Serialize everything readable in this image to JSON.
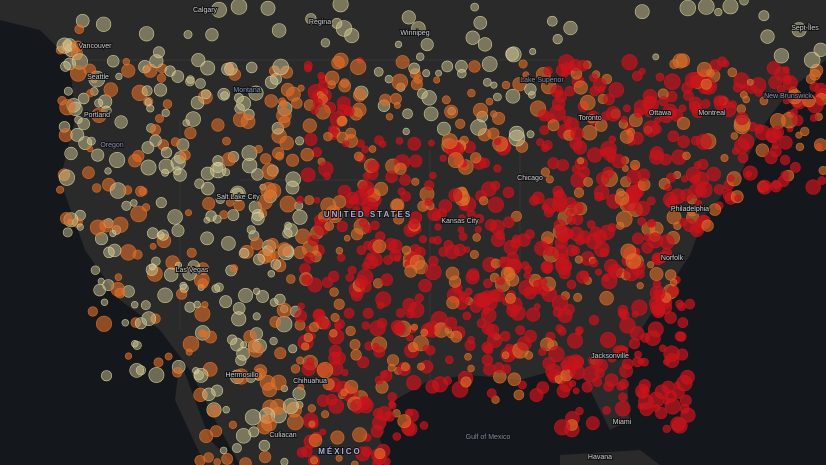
{
  "labels": [
    "Calgary",
    "Regina",
    "Winnipeg",
    "Vancouver",
    "Seattle",
    "Portland",
    "Oregon",
    "Montana",
    "Lake Superior",
    "Salt Lake City",
    "Las Vegas",
    "Kansas City",
    "UNITED STATES",
    "Chicago",
    "Toronto",
    "Ottawa",
    "Montreal",
    "Philadelphia",
    "New Brunswick",
    "Sept-Îles",
    "Norfolk",
    "Jacksonville",
    "Miami",
    "Havana",
    "Gulf of Mexico",
    "Chihuahua",
    "Hermosillo",
    "Culiacan",
    "MÉXICO"
  ]
}
